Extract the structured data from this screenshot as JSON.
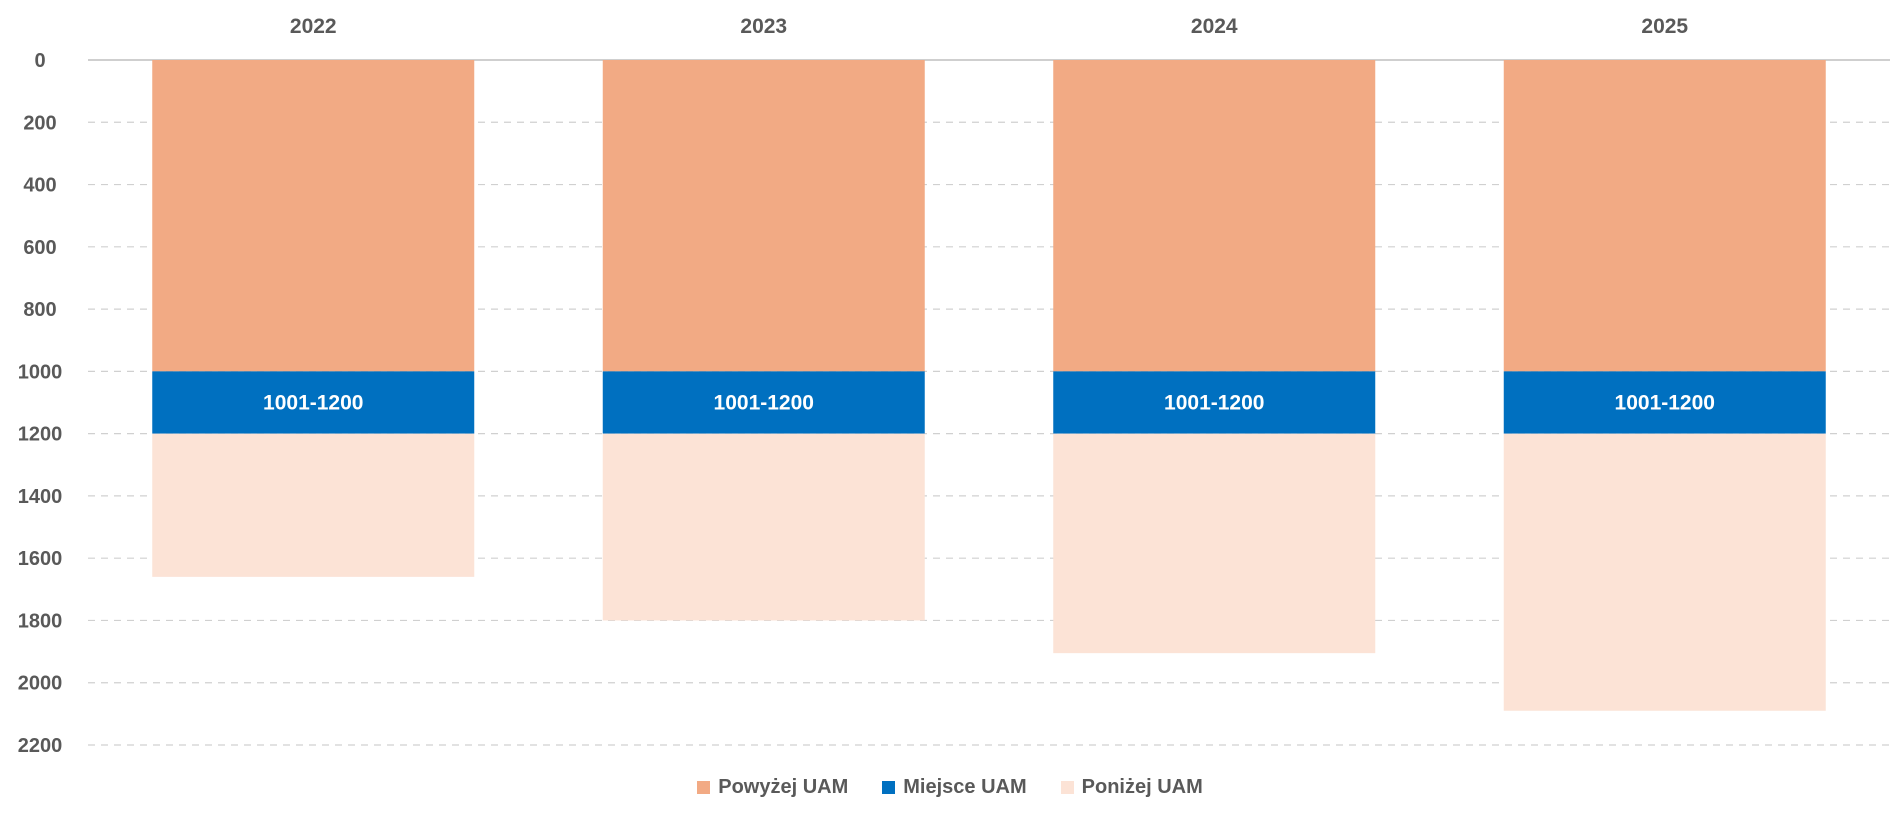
{
  "chart_data": {
    "type": "bar",
    "stacked": true,
    "y_axis_inverted": true,
    "x_axis_position": "top",
    "categories": [
      "2022",
      "2023",
      "2024",
      "2025"
    ],
    "ylim": [
      0,
      2200
    ],
    "yticks": [
      "0",
      "200",
      "400",
      "600",
      "800",
      "1000",
      "1200",
      "1400",
      "1600",
      "1800",
      "2000",
      "2200"
    ],
    "grid": true,
    "legend_position": "bottom",
    "series": [
      {
        "name": "Powyżej UAM",
        "color": "#f2aa84",
        "values": [
          1000,
          1000,
          1000,
          1000
        ]
      },
      {
        "name": "Miejsce UAM",
        "color": "#0070c0",
        "values": [
          200,
          200,
          200,
          200
        ],
        "labels": [
          "1001-1200",
          "1001-1200",
          "1001-1200",
          "1001-1200"
        ]
      },
      {
        "name": "Poniżej UAM",
        "color": "#fce3d6",
        "values": [
          460,
          600,
          705,
          890
        ]
      }
    ]
  }
}
